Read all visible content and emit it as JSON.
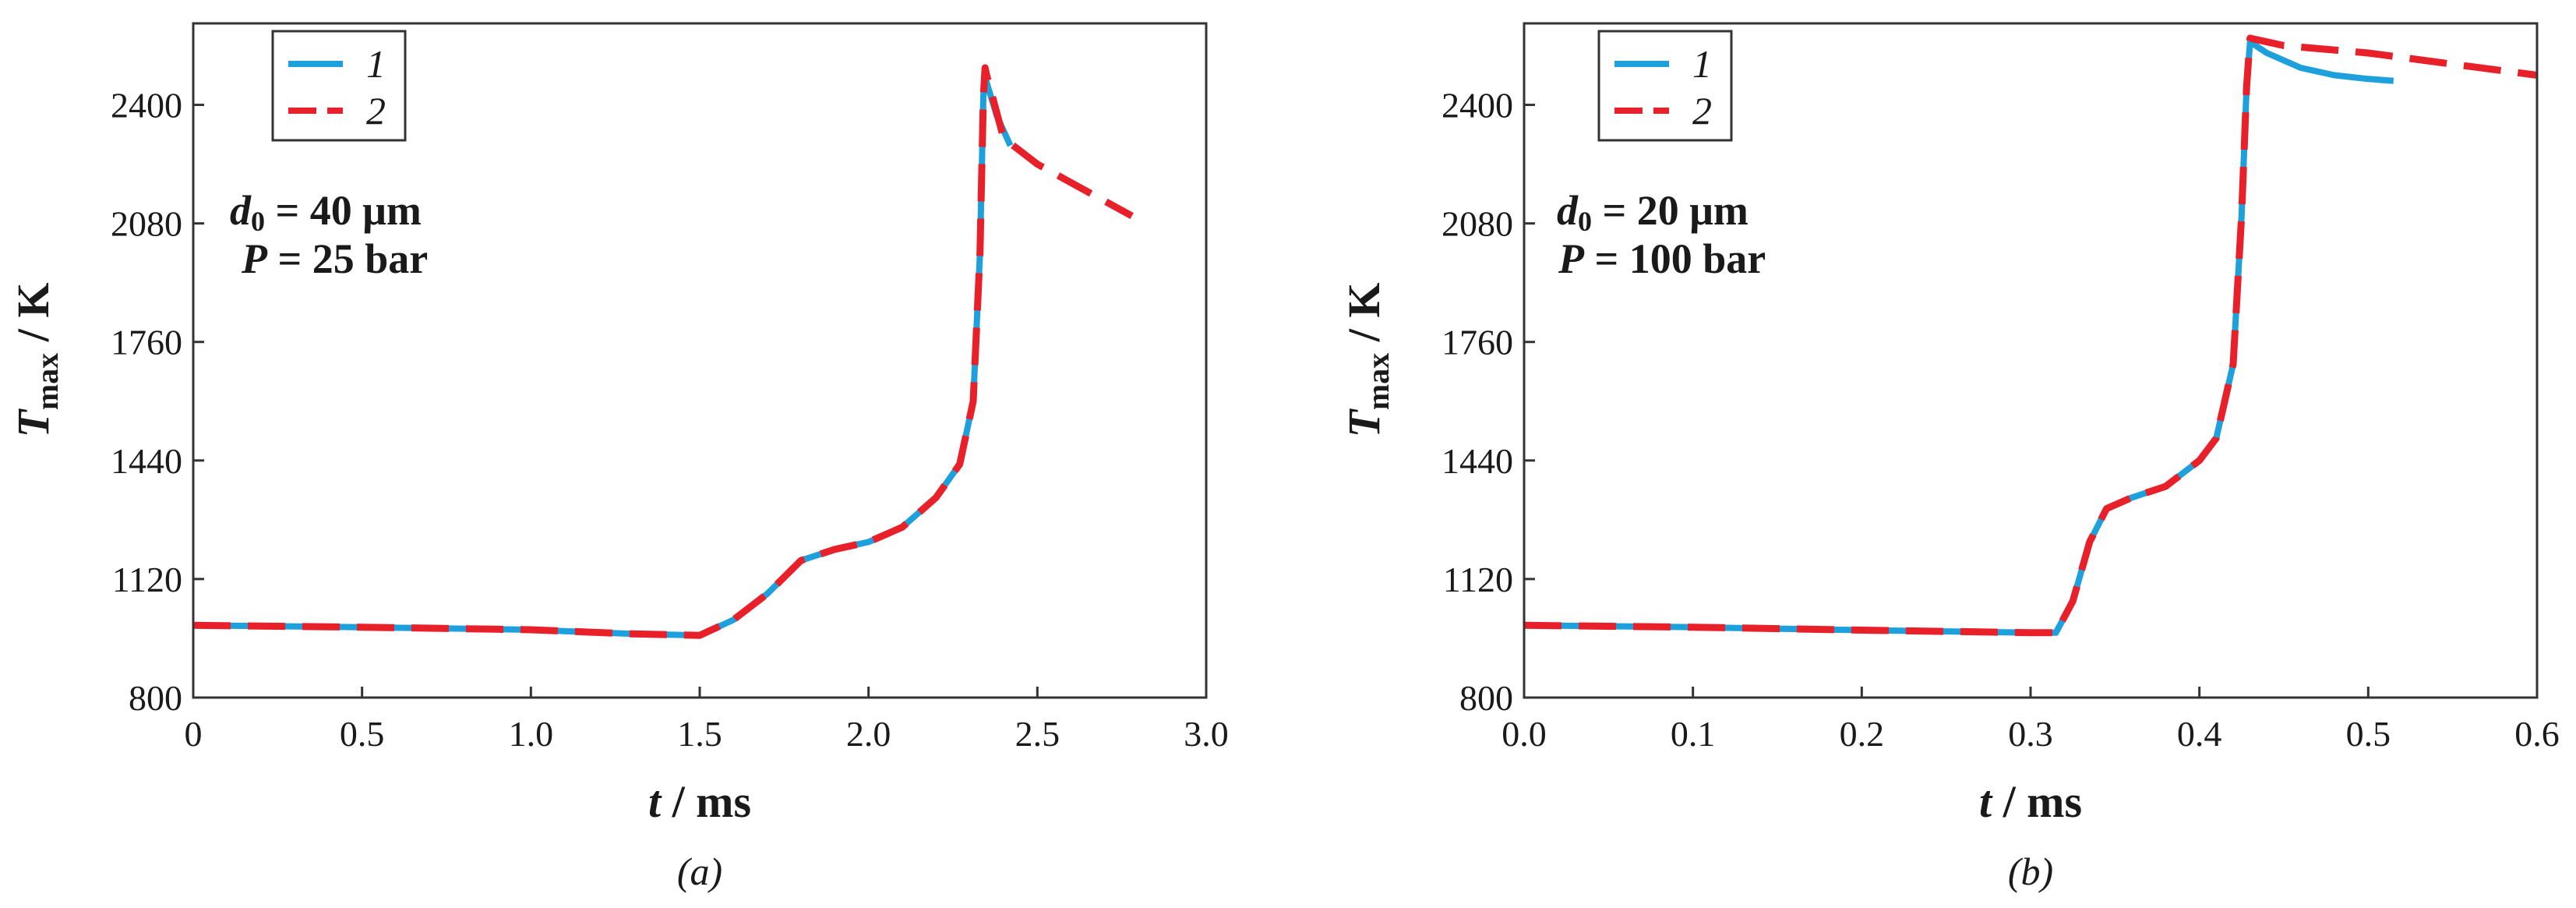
{
  "chart_data": [
    {
      "type": "line",
      "caption": "(a)",
      "xlabel": {
        "italic": "t",
        "rest": " / ms"
      },
      "ylabel": {
        "italic": "T",
        "sub": "max",
        "rest": " / K"
      },
      "xlim": [
        0,
        3.0
      ],
      "ylim": [
        800,
        2620
      ],
      "xticks": [
        0,
        0.5,
        1.0,
        1.5,
        2.0,
        2.5,
        3.0
      ],
      "xtick_labels": [
        "0",
        "0.5",
        "1.0",
        "1.5",
        "2.0",
        "2.5",
        "3.0"
      ],
      "yticks": [
        800,
        1120,
        1440,
        1760,
        2080,
        2400
      ],
      "ytick_labels": [
        "800",
        "1120",
        "1440",
        "1760",
        "2080",
        "2400"
      ],
      "annotation": {
        "line1": {
          "italic": "d",
          "sub": "0",
          "rest": " = 40 μm"
        },
        "line2": {
          "italic": "P",
          "rest": " = 25 bar"
        }
      },
      "legend": [
        "1",
        "2"
      ],
      "series": [
        {
          "name": "1",
          "color": "#1ea0dc",
          "style": "solid",
          "x": [
            0,
            0.5,
            1.0,
            1.3,
            1.5,
            1.6,
            1.7,
            1.8,
            1.9,
            2.0,
            2.1,
            2.2,
            2.27,
            2.31,
            2.33,
            2.34,
            2.345,
            2.35,
            2.38,
            2.42
          ],
          "y": [
            995,
            990,
            983,
            972,
            968,
            1010,
            1080,
            1170,
            1200,
            1220,
            1260,
            1340,
            1430,
            1600,
            2000,
            2420,
            2500,
            2460,
            2370,
            2290
          ]
        },
        {
          "name": "2",
          "color": "#e8202a",
          "style": "dashed",
          "x": [
            0,
            0.5,
            1.0,
            1.3,
            1.5,
            1.6,
            1.7,
            1.8,
            1.9,
            2.0,
            2.1,
            2.2,
            2.27,
            2.31,
            2.33,
            2.34,
            2.345,
            2.35,
            2.4,
            2.5,
            2.6,
            2.7,
            2.78
          ],
          "y": [
            995,
            990,
            983,
            972,
            968,
            1010,
            1080,
            1170,
            1200,
            1220,
            1260,
            1340,
            1430,
            1600,
            2000,
            2420,
            2500,
            2480,
            2310,
            2240,
            2190,
            2140,
            2100
          ]
        }
      ]
    },
    {
      "type": "line",
      "caption": "(b)",
      "xlabel": {
        "italic": "t",
        "rest": " / ms"
      },
      "ylabel": {
        "italic": "T",
        "sub": "max",
        "rest": " / K"
      },
      "xlim": [
        0,
        0.6
      ],
      "ylim": [
        800,
        2620
      ],
      "xticks": [
        0,
        0.1,
        0.2,
        0.3,
        0.4,
        0.5,
        0.6
      ],
      "xtick_labels": [
        "0.0",
        "0.1",
        "0.2",
        "0.3",
        "0.4",
        "0.5",
        "0.6"
      ],
      "yticks": [
        800,
        1120,
        1440,
        1760,
        2080,
        2400
      ],
      "ytick_labels": [
        "800",
        "1120",
        "1440",
        "1760",
        "2080",
        "2400"
      ],
      "annotation": {
        "line1": {
          "italic": "d",
          "sub": "0",
          "rest": " = 20 μm"
        },
        "line2": {
          "italic": "P",
          "rest": " = 100 bar"
        }
      },
      "legend": [
        "1",
        "2"
      ],
      "series": [
        {
          "name": "1",
          "color": "#1ea0dc",
          "style": "solid",
          "x": [
            0,
            0.1,
            0.2,
            0.3,
            0.315,
            0.325,
            0.335,
            0.345,
            0.36,
            0.38,
            0.4,
            0.41,
            0.42,
            0.425,
            0.428,
            0.43,
            0.44,
            0.46,
            0.48,
            0.5,
            0.515
          ],
          "y": [
            995,
            990,
            982,
            975,
            975,
            1060,
            1220,
            1310,
            1340,
            1370,
            1440,
            1500,
            1700,
            2100,
            2450,
            2570,
            2540,
            2500,
            2480,
            2470,
            2465
          ]
        },
        {
          "name": "2",
          "color": "#e8202a",
          "style": "dashed",
          "x": [
            0,
            0.1,
            0.2,
            0.3,
            0.315,
            0.325,
            0.335,
            0.345,
            0.36,
            0.38,
            0.4,
            0.41,
            0.42,
            0.425,
            0.428,
            0.43,
            0.45,
            0.5,
            0.55,
            0.6
          ],
          "y": [
            995,
            990,
            982,
            975,
            975,
            1060,
            1220,
            1310,
            1340,
            1370,
            1440,
            1500,
            1700,
            2100,
            2450,
            2580,
            2560,
            2540,
            2510,
            2480
          ]
        }
      ]
    }
  ]
}
